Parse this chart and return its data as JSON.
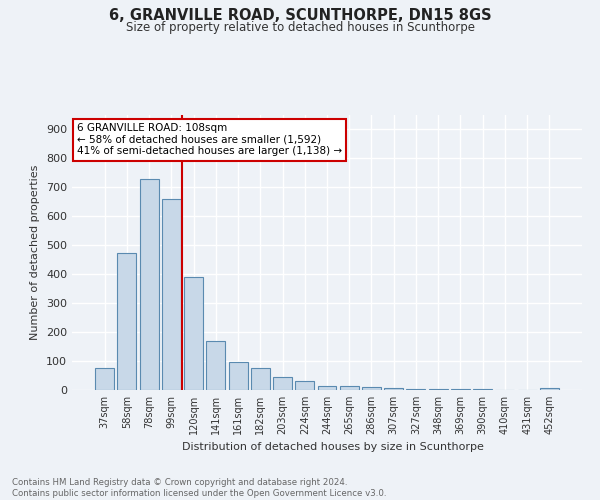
{
  "title": "6, GRANVILLE ROAD, SCUNTHORPE, DN15 8GS",
  "subtitle": "Size of property relative to detached houses in Scunthorpe",
  "xlabel": "Distribution of detached houses by size in Scunthorpe",
  "ylabel": "Number of detached properties",
  "bar_labels": [
    "37sqm",
    "58sqm",
    "78sqm",
    "99sqm",
    "120sqm",
    "141sqm",
    "161sqm",
    "182sqm",
    "203sqm",
    "224sqm",
    "244sqm",
    "265sqm",
    "286sqm",
    "307sqm",
    "327sqm",
    "348sqm",
    "369sqm",
    "390sqm",
    "410sqm",
    "431sqm",
    "452sqm"
  ],
  "bar_values": [
    75,
    475,
    730,
    660,
    390,
    170,
    97,
    75,
    45,
    30,
    15,
    13,
    10,
    7,
    5,
    4,
    3,
    2,
    1,
    1,
    8
  ],
  "bar_color": "#c8d8e8",
  "bar_edge_color": "#5a8ab0",
  "annotation_text": "6 GRANVILLE ROAD: 108sqm\n← 58% of detached houses are smaller (1,592)\n41% of semi-detached houses are larger (1,138) →",
  "annotation_box_color": "#ffffff",
  "annotation_box_edge": "#cc0000",
  "vline_color": "#cc0000",
  "background_color": "#eef2f7",
  "plot_bg_color": "#eef2f7",
  "grid_color": "#ffffff",
  "footer_text": "Contains HM Land Registry data © Crown copyright and database right 2024.\nContains public sector information licensed under the Open Government Licence v3.0.",
  "ylim": [
    0,
    950
  ],
  "yticks": [
    0,
    100,
    200,
    300,
    400,
    500,
    600,
    700,
    800,
    900
  ]
}
